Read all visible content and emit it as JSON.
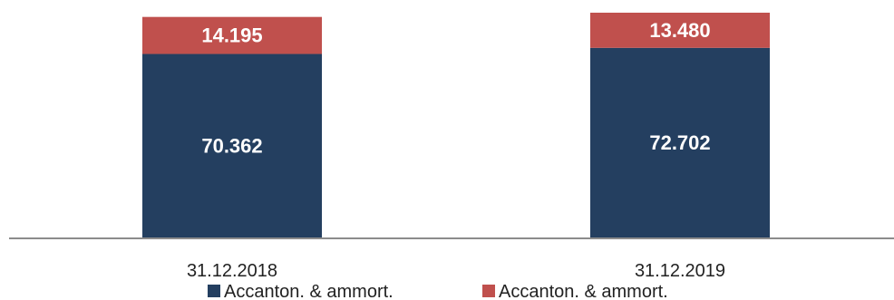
{
  "chart_data": {
    "type": "bar",
    "stacked": true,
    "categories": [
      "31.12.2018",
      "31.12.2019"
    ],
    "series": [
      {
        "name": "Accanton. & ammort.",
        "values": [
          70362,
          72702
        ],
        "labels": [
          "70.362",
          "72.702"
        ],
        "color": "#243f60"
      },
      {
        "name": "Accanton. & ammort.",
        "values": [
          14195,
          13480
        ],
        "labels": [
          "14.195",
          "13.480"
        ],
        "color": "#c0504d"
      }
    ],
    "title": "",
    "xlabel": "",
    "ylabel": "",
    "grid": false,
    "legend": "bottom"
  }
}
